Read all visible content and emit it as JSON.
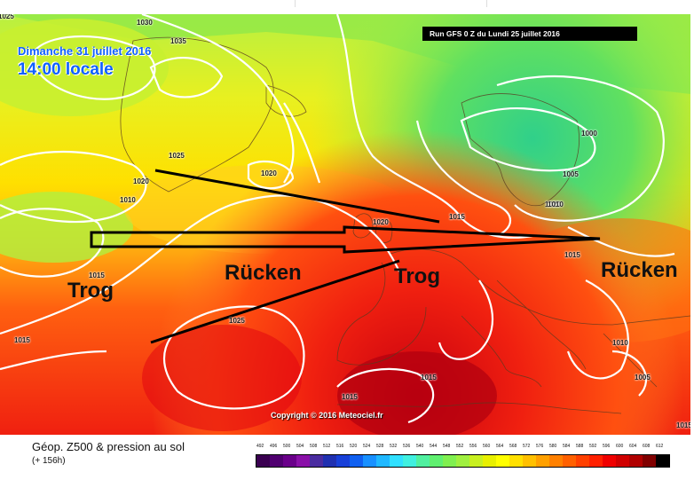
{
  "map": {
    "date_label": "Dimanche 31 juillet 2016",
    "time_label": "14:00 locale",
    "run_label": "Run GFS 0 Z du Lundi 25 juillet 2016",
    "copyright": "Copyright © 2016 Meteociel.fr",
    "annotations": [
      {
        "text": "Trog"
      },
      {
        "text": "Rücken"
      },
      {
        "text": "Trog"
      },
      {
        "text": "Rücken"
      }
    ],
    "isobars": [
      "1025",
      "1030",
      "1035",
      "1025",
      "1020",
      "1020",
      "1010",
      "1020",
      "1015",
      "1020",
      "1000",
      "1005",
      "1010",
      "1015",
      "1015",
      "1025",
      "1015",
      "1010",
      "1005",
      "1015",
      "1015",
      "1015"
    ]
  },
  "footer": {
    "title": "Géop. Z500 & pression au sol",
    "subtitle": "(+ 156h)"
  },
  "scale": {
    "ticks": [
      "492",
      "496",
      "500",
      "504",
      "508",
      "512",
      "516",
      "520",
      "524",
      "528",
      "532",
      "536",
      "540",
      "544",
      "548",
      "552",
      "556",
      "560",
      "564",
      "568",
      "572",
      "576",
      "580",
      "584",
      "588",
      "592",
      "596",
      "600",
      "604",
      "608",
      "612"
    ],
    "colors": [
      "#3a0050",
      "#500070",
      "#6a008a",
      "#8a10a8",
      "#4a2ca0",
      "#2030b0",
      "#1840d8",
      "#1060f0",
      "#1890ff",
      "#20b8ff",
      "#30e0ff",
      "#40f0e0",
      "#50f0a0",
      "#60f070",
      "#80f050",
      "#a0f040",
      "#c8f020",
      "#e8f000",
      "#ffff00",
      "#ffe000",
      "#ffc000",
      "#ffa000",
      "#ff8000",
      "#ff6000",
      "#ff4000",
      "#ff2000",
      "#f00000",
      "#d00000",
      "#b00000",
      "#800000",
      "#000000"
    ]
  }
}
